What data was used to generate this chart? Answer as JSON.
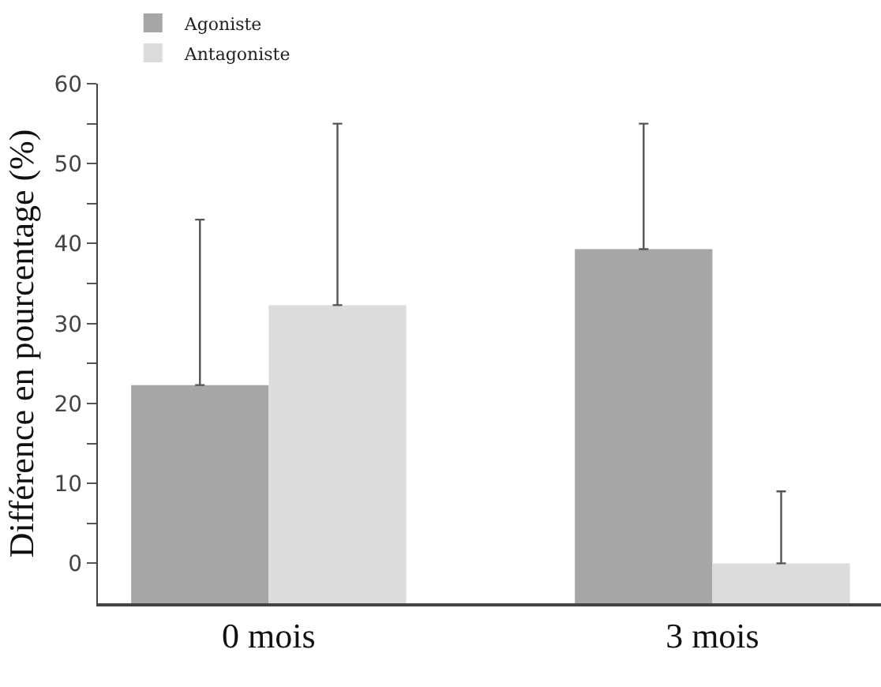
{
  "chart_data": {
    "type": "bar",
    "ylabel": "Différence en pourcentage (%)",
    "categories": [
      "0 mois",
      "3 mois"
    ],
    "series": [
      {
        "name": "Agoniste",
        "color": "#a6a6a6",
        "base": [
          -5,
          -5
        ],
        "values": [
          27.3,
          44.3
        ],
        "errors": [
          [
            22.3,
            43
          ],
          [
            39.3,
            55
          ]
        ]
      },
      {
        "name": "Antagoniste",
        "color": "#dcdcdc",
        "base": [
          -5,
          -5
        ],
        "values": [
          37.3,
          5.0
        ],
        "errors": [
          [
            32.3,
            55
          ],
          [
            0,
            9
          ]
        ]
      }
    ],
    "ylim": [
      -5,
      60
    ],
    "yticks": [
      0,
      {
        "value": 5,
        "label": null
      },
      10,
      {
        "value": 15,
        "label": null
      },
      20,
      {
        "value": 25,
        "label": null
      },
      30,
      {
        "value": 35,
        "label": null
      },
      40,
      {
        "value": 45,
        "label": null
      },
      50,
      {
        "value": 55,
        "label": null
      },
      60
    ],
    "legend": "top left"
  }
}
